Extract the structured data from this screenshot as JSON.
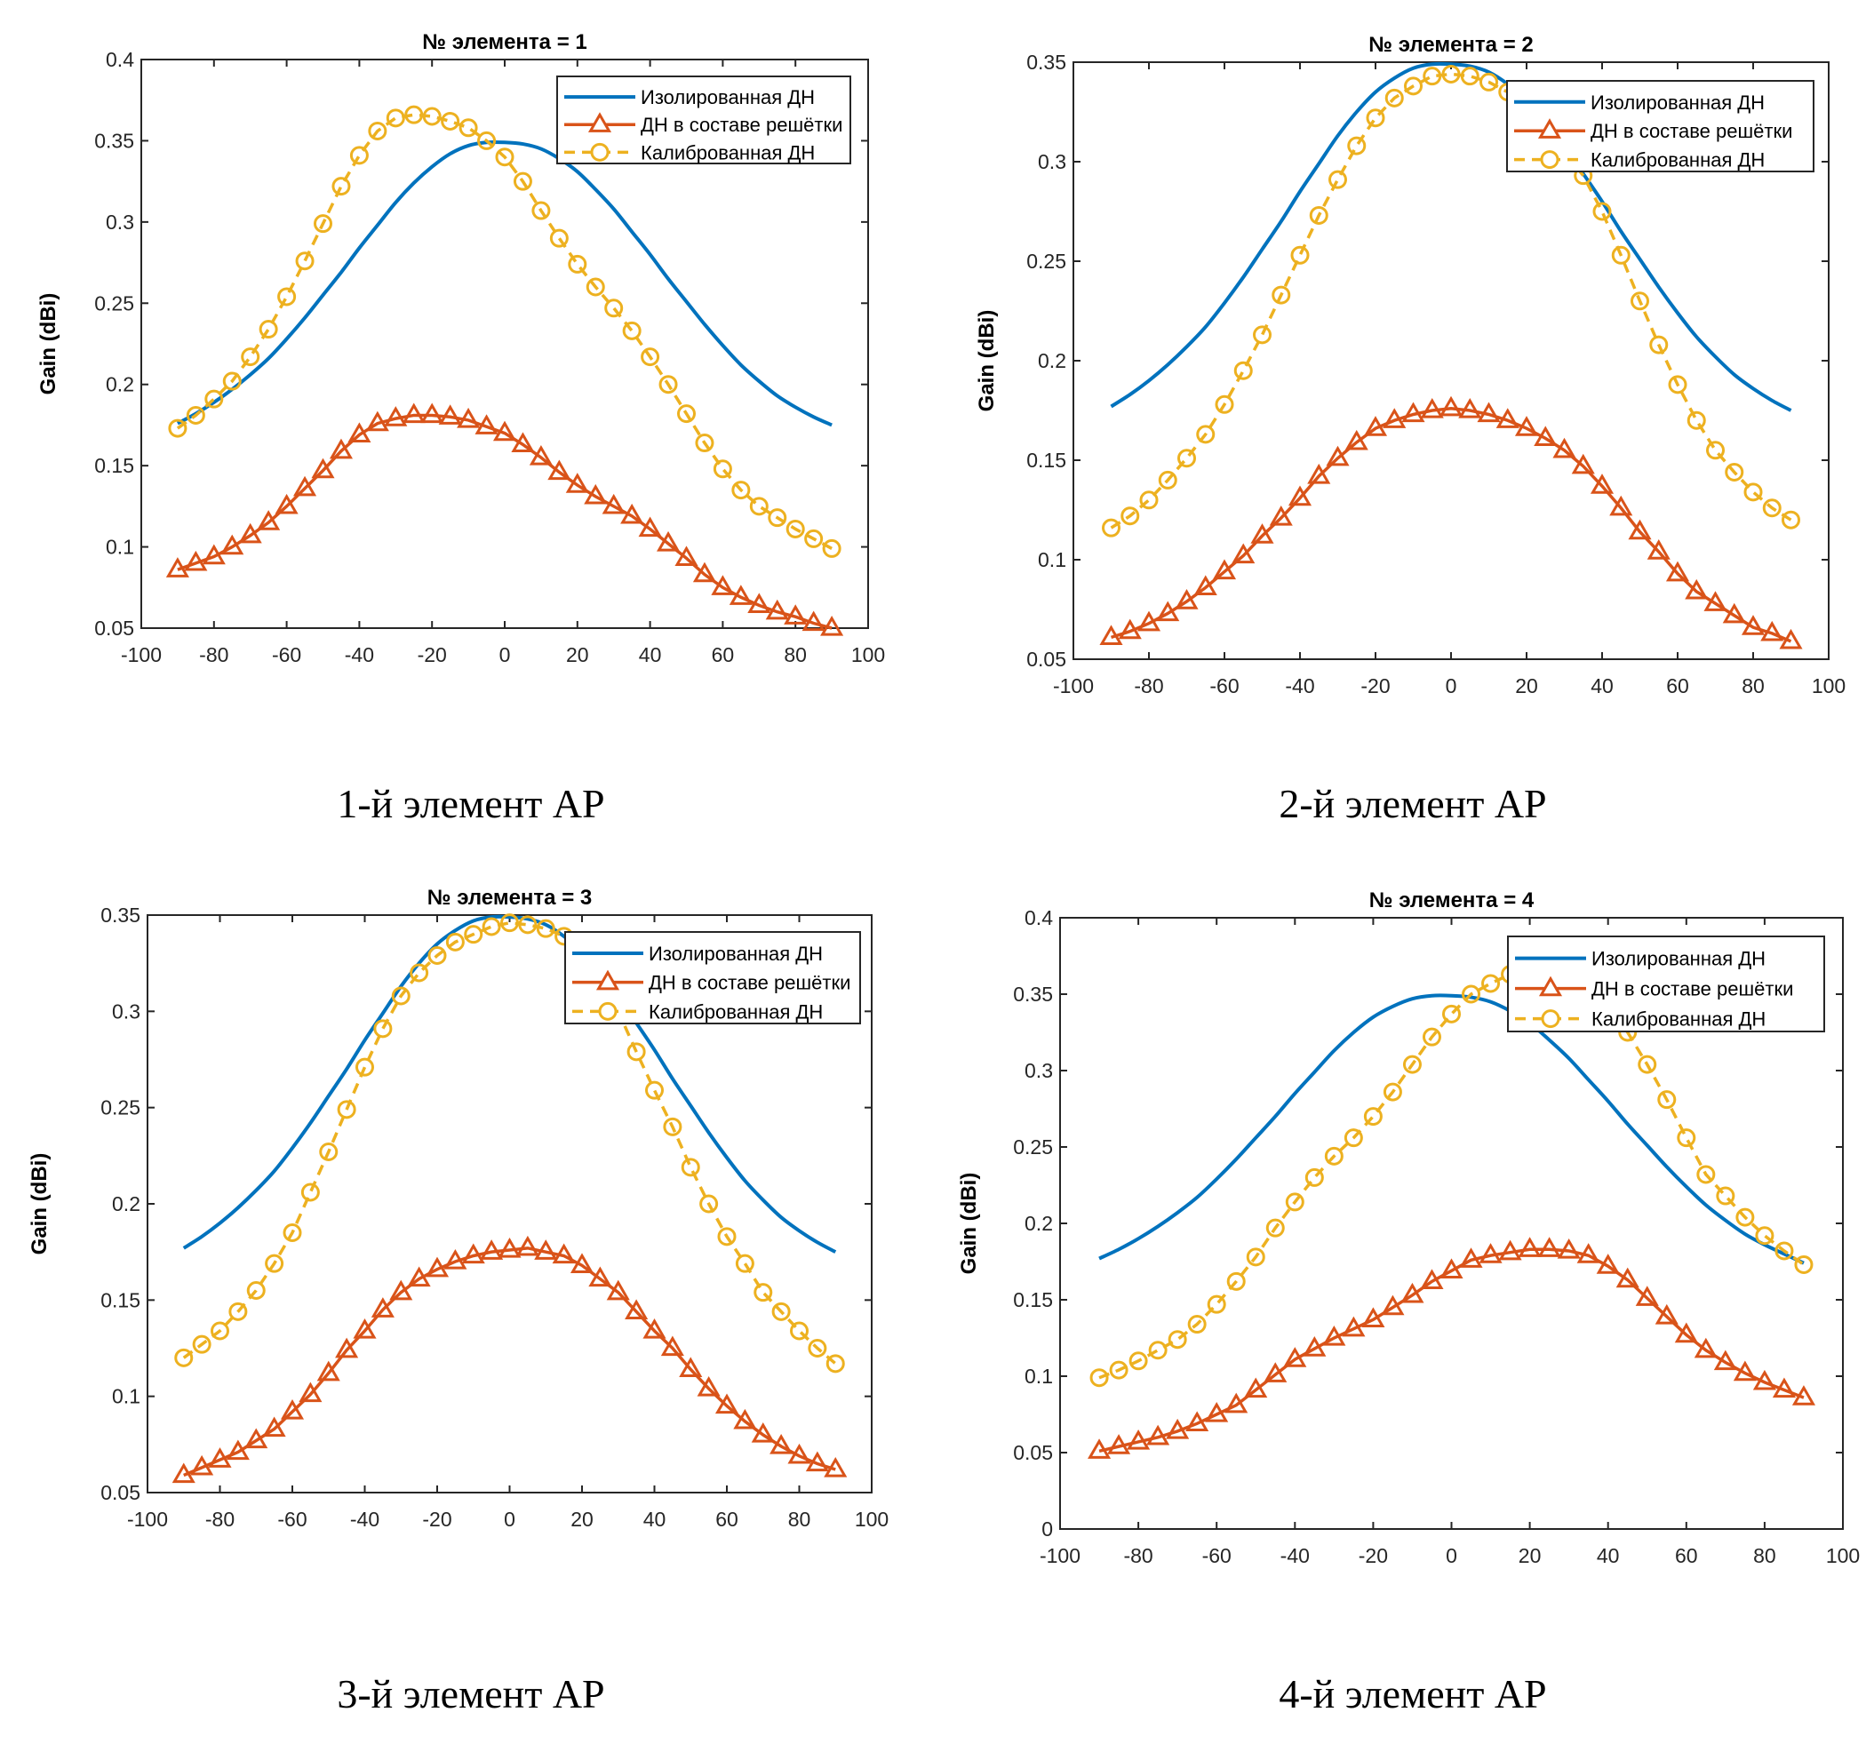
{
  "chart_data": [
    {
      "type": "line",
      "title": "№ элемента = 1",
      "caption": "1-й элемент АР",
      "xlabel": "",
      "ylabel": "Gain (dBi)",
      "xlim": [
        -100,
        100
      ],
      "ylim": [
        0.05,
        0.4
      ],
      "xticks": [
        -100,
        -80,
        -60,
        -40,
        -20,
        0,
        20,
        40,
        60,
        80,
        100
      ],
      "yticks": [
        0.05,
        0.1,
        0.15,
        0.2,
        0.25,
        0.3,
        0.35,
        0.4
      ],
      "ytick_labels": [
        "0.05",
        "0.1",
        "0.15",
        "0.2",
        "0.25",
        "0.3",
        "0.35",
        "0.4"
      ],
      "legend_position": "top-right",
      "x": [
        -90,
        -85,
        -80,
        -75,
        -70,
        -65,
        -60,
        -55,
        -50,
        -45,
        -40,
        -35,
        -30,
        -25,
        -20,
        -15,
        -10,
        -5,
        0,
        5,
        10,
        15,
        20,
        25,
        30,
        35,
        40,
        45,
        50,
        55,
        60,
        65,
        70,
        75,
        80,
        85,
        90
      ],
      "series": [
        {
          "name": "Изолированная ДН",
          "style": "solid",
          "marker": "none",
          "color": "#0072BD",
          "values": [
            0.176,
            0.182,
            0.189,
            0.197,
            0.206,
            0.216,
            0.228,
            0.241,
            0.255,
            0.269,
            0.284,
            0.298,
            0.312,
            0.324,
            0.334,
            0.342,
            0.347,
            0.349,
            0.349,
            0.348,
            0.345,
            0.339,
            0.331,
            0.32,
            0.308,
            0.294,
            0.28,
            0.265,
            0.251,
            0.237,
            0.224,
            0.212,
            0.202,
            0.193,
            0.186,
            0.18,
            0.175
          ]
        },
        {
          "name": "ДН в составе решётки",
          "style": "solid",
          "marker": "triangle",
          "color": "#D95319",
          "values": [
            0.086,
            0.09,
            0.094,
            0.1,
            0.107,
            0.115,
            0.125,
            0.136,
            0.147,
            0.159,
            0.169,
            0.176,
            0.179,
            0.181,
            0.181,
            0.18,
            0.178,
            0.174,
            0.17,
            0.163,
            0.155,
            0.146,
            0.138,
            0.131,
            0.125,
            0.119,
            0.111,
            0.102,
            0.093,
            0.083,
            0.075,
            0.069,
            0.064,
            0.06,
            0.057,
            0.053,
            0.05
          ]
        },
        {
          "name": "Калиброванная ДН",
          "style": "dashed",
          "marker": "circle",
          "color": "#EDB120",
          "values": [
            0.173,
            0.181,
            0.191,
            0.202,
            0.217,
            0.234,
            0.254,
            0.276,
            0.299,
            0.322,
            0.341,
            0.356,
            0.364,
            0.366,
            0.365,
            0.362,
            0.358,
            0.35,
            0.34,
            0.325,
            0.307,
            0.29,
            0.274,
            0.26,
            0.247,
            0.233,
            0.217,
            0.2,
            0.182,
            0.164,
            0.148,
            0.135,
            0.125,
            0.118,
            0.111,
            0.105,
            0.099
          ]
        }
      ]
    },
    {
      "type": "line",
      "title": "№ элемента = 2",
      "caption": "2-й элемент АР",
      "xlabel": "",
      "ylabel": "Gain (dBi)",
      "xlim": [
        -100,
        100
      ],
      "ylim": [
        0.05,
        0.35
      ],
      "xticks": [
        -100,
        -80,
        -60,
        -40,
        -20,
        0,
        20,
        40,
        60,
        80,
        100
      ],
      "yticks": [
        0.05,
        0.1,
        0.15,
        0.2,
        0.25,
        0.3,
        0.35
      ],
      "ytick_labels": [
        "0.05",
        "0.1",
        "0.15",
        "0.2",
        "0.25",
        "0.3",
        "0.35"
      ],
      "legend_position": "top-right",
      "x": [
        -90,
        -85,
        -80,
        -75,
        -70,
        -65,
        -60,
        -55,
        -50,
        -45,
        -40,
        -35,
        -30,
        -25,
        -20,
        -15,
        -10,
        -5,
        0,
        5,
        10,
        15,
        20,
        25,
        30,
        35,
        40,
        45,
        50,
        55,
        60,
        65,
        70,
        75,
        80,
        85,
        90
      ],
      "series": [
        {
          "name": "Изолированная ДН",
          "style": "solid",
          "marker": "none",
          "color": "#0072BD",
          "values": [
            0.177,
            0.183,
            0.19,
            0.198,
            0.207,
            0.217,
            0.229,
            0.242,
            0.256,
            0.27,
            0.285,
            0.299,
            0.313,
            0.325,
            0.335,
            0.342,
            0.347,
            0.349,
            0.349,
            0.348,
            0.345,
            0.339,
            0.331,
            0.32,
            0.308,
            0.294,
            0.28,
            0.265,
            0.251,
            0.237,
            0.224,
            0.212,
            0.202,
            0.193,
            0.186,
            0.18,
            0.175
          ]
        },
        {
          "name": "ДН в составе решётки",
          "style": "solid",
          "marker": "triangle",
          "color": "#D95319",
          "values": [
            0.061,
            0.064,
            0.068,
            0.073,
            0.079,
            0.086,
            0.094,
            0.102,
            0.112,
            0.121,
            0.131,
            0.142,
            0.151,
            0.159,
            0.166,
            0.17,
            0.173,
            0.175,
            0.176,
            0.175,
            0.173,
            0.17,
            0.166,
            0.161,
            0.155,
            0.147,
            0.137,
            0.126,
            0.114,
            0.104,
            0.093,
            0.084,
            0.078,
            0.072,
            0.066,
            0.063,
            0.059
          ]
        },
        {
          "name": "Калиброванная ДН",
          "style": "dashed",
          "marker": "circle",
          "color": "#EDB120",
          "values": [
            0.116,
            0.122,
            0.13,
            0.14,
            0.151,
            0.163,
            0.178,
            0.195,
            0.213,
            0.233,
            0.253,
            0.273,
            0.291,
            0.308,
            0.322,
            0.332,
            0.338,
            0.343,
            0.344,
            0.343,
            0.34,
            0.335,
            0.328,
            0.316,
            0.305,
            0.293,
            0.275,
            0.253,
            0.23,
            0.208,
            0.188,
            0.17,
            0.155,
            0.144,
            0.134,
            0.126,
            0.12
          ]
        }
      ]
    },
    {
      "type": "line",
      "title": "№ элемента = 3",
      "caption": "3-й элемент АР",
      "xlabel": "",
      "ylabel": "Gain (dBi)",
      "xlim": [
        -100,
        100
      ],
      "ylim": [
        0.05,
        0.35
      ],
      "xticks": [
        -100,
        -80,
        -60,
        -40,
        -20,
        0,
        20,
        40,
        60,
        80,
        100
      ],
      "yticks": [
        0.05,
        0.1,
        0.15,
        0.2,
        0.25,
        0.3,
        0.35
      ],
      "ytick_labels": [
        "0.05",
        "0.1",
        "0.15",
        "0.2",
        "0.25",
        "0.3",
        "0.35"
      ],
      "legend_position": "top-right",
      "x": [
        -90,
        -85,
        -80,
        -75,
        -70,
        -65,
        -60,
        -55,
        -50,
        -45,
        -40,
        -35,
        -30,
        -25,
        -20,
        -15,
        -10,
        -5,
        0,
        5,
        10,
        15,
        20,
        25,
        30,
        35,
        40,
        45,
        50,
        55,
        60,
        65,
        70,
        75,
        80,
        85,
        90
      ],
      "series": [
        {
          "name": "Изолированная ДН",
          "style": "solid",
          "marker": "none",
          "color": "#0072BD",
          "values": [
            0.177,
            0.183,
            0.19,
            0.198,
            0.207,
            0.217,
            0.229,
            0.242,
            0.256,
            0.27,
            0.285,
            0.299,
            0.313,
            0.325,
            0.335,
            0.342,
            0.347,
            0.349,
            0.349,
            0.348,
            0.345,
            0.339,
            0.331,
            0.32,
            0.308,
            0.294,
            0.28,
            0.265,
            0.251,
            0.237,
            0.224,
            0.212,
            0.202,
            0.193,
            0.186,
            0.18,
            0.175
          ]
        },
        {
          "name": "ДН в составе решётки",
          "style": "solid",
          "marker": "triangle",
          "color": "#D95319",
          "values": [
            0.059,
            0.063,
            0.067,
            0.071,
            0.077,
            0.083,
            0.092,
            0.101,
            0.112,
            0.124,
            0.134,
            0.145,
            0.154,
            0.161,
            0.166,
            0.17,
            0.173,
            0.175,
            0.176,
            0.177,
            0.175,
            0.173,
            0.168,
            0.161,
            0.154,
            0.144,
            0.134,
            0.125,
            0.114,
            0.104,
            0.095,
            0.087,
            0.08,
            0.074,
            0.069,
            0.065,
            0.062
          ]
        },
        {
          "name": "Калиброванная ДН",
          "style": "dashed",
          "marker": "circle",
          "color": "#EDB120",
          "values": [
            0.12,
            0.127,
            0.134,
            0.144,
            0.155,
            0.169,
            0.185,
            0.206,
            0.227,
            0.249,
            0.271,
            0.291,
            0.308,
            0.32,
            0.329,
            0.336,
            0.34,
            0.344,
            0.346,
            0.345,
            0.343,
            0.339,
            0.329,
            0.315,
            0.3,
            0.279,
            0.259,
            0.24,
            0.219,
            0.2,
            0.183,
            0.169,
            0.154,
            0.144,
            0.134,
            0.125,
            0.117
          ]
        }
      ]
    },
    {
      "type": "line",
      "title": "№ элемента = 4",
      "caption": "4-й элемент АР",
      "xlabel": "",
      "ylabel": "Gain (dBi)",
      "xlim": [
        -100,
        100
      ],
      "ylim": [
        0,
        0.4
      ],
      "xticks": [
        -100,
        -80,
        -60,
        -40,
        -20,
        0,
        20,
        40,
        60,
        80,
        100
      ],
      "yticks": [
        0,
        0.05,
        0.1,
        0.15,
        0.2,
        0.25,
        0.3,
        0.35,
        0.4
      ],
      "ytick_labels": [
        "0",
        "0.05",
        "0.1",
        "0.15",
        "0.2",
        "0.25",
        "0.3",
        "0.35",
        "0.4"
      ],
      "legend_position": "top-right",
      "x": [
        -90,
        -85,
        -80,
        -75,
        -70,
        -65,
        -60,
        -55,
        -50,
        -45,
        -40,
        -35,
        -30,
        -25,
        -20,
        -15,
        -10,
        -5,
        0,
        5,
        10,
        15,
        20,
        25,
        30,
        35,
        40,
        45,
        50,
        55,
        60,
        65,
        70,
        75,
        80,
        85,
        90
      ],
      "series": [
        {
          "name": "Изолированная ДН",
          "style": "solid",
          "marker": "none",
          "color": "#0072BD",
          "values": [
            0.177,
            0.183,
            0.19,
            0.198,
            0.207,
            0.217,
            0.229,
            0.242,
            0.256,
            0.27,
            0.285,
            0.299,
            0.313,
            0.325,
            0.335,
            0.342,
            0.347,
            0.349,
            0.349,
            0.348,
            0.345,
            0.339,
            0.331,
            0.32,
            0.308,
            0.294,
            0.28,
            0.265,
            0.251,
            0.237,
            0.224,
            0.212,
            0.202,
            0.193,
            0.186,
            0.18,
            0.174
          ]
        },
        {
          "name": "ДН в составе решётки",
          "style": "solid",
          "marker": "triangle",
          "color": "#D95319",
          "values": [
            0.051,
            0.054,
            0.057,
            0.06,
            0.064,
            0.069,
            0.075,
            0.081,
            0.091,
            0.101,
            0.111,
            0.118,
            0.125,
            0.131,
            0.137,
            0.145,
            0.153,
            0.162,
            0.169,
            0.176,
            0.179,
            0.181,
            0.183,
            0.183,
            0.182,
            0.179,
            0.172,
            0.163,
            0.151,
            0.139,
            0.127,
            0.117,
            0.109,
            0.102,
            0.096,
            0.091,
            0.086
          ]
        },
        {
          "name": "Калиброванная ДН",
          "style": "dashed",
          "marker": "circle",
          "color": "#EDB120",
          "values": [
            0.099,
            0.104,
            0.11,
            0.117,
            0.124,
            0.134,
            0.147,
            0.162,
            0.178,
            0.197,
            0.214,
            0.23,
            0.244,
            0.256,
            0.27,
            0.286,
            0.304,
            0.322,
            0.337,
            0.35,
            0.357,
            0.363,
            0.365,
            0.366,
            0.364,
            0.355,
            0.343,
            0.325,
            0.304,
            0.281,
            0.256,
            0.232,
            0.218,
            0.204,
            0.192,
            0.182,
            0.173
          ]
        }
      ]
    }
  ]
}
